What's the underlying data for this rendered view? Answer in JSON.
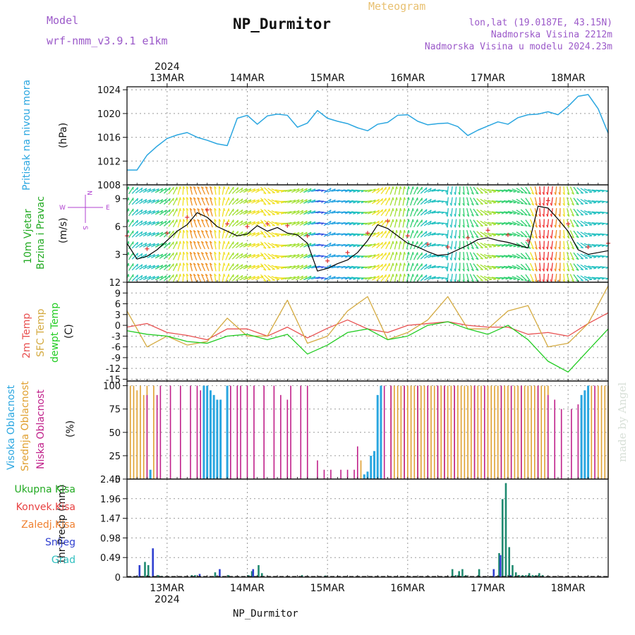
{
  "header": {
    "model_label": "Model",
    "model_name": "wrf-nmm_v3.9.1 e1km",
    "title": "NP_Durmitor",
    "meteogram_label": "Meteogram",
    "lonlat": "lon,lat (19.0187E, 43.15N)",
    "elevation": "Nadmorska Visina 2212m",
    "model_elevation": "Nadmorska Visina u modelu 2024.23m",
    "watermark": "made by Angel",
    "footer": "NP_Durmitor"
  },
  "colors": {
    "pressure": "#2aa6e0",
    "temp2m": "#e85050",
    "sfc": "#d4aa40",
    "dewpt": "#22cc22",
    "high_cloud": "#2aa6e0",
    "mid_cloud": "#e0a030",
    "low_cloud": "#c0208a",
    "rain_total": "#1f8a70",
    "convective": "#e84040",
    "freezing": "#f08030",
    "snow": "#3040d0",
    "hail": "#30c0c0"
  },
  "time_axis": {
    "year": "2024",
    "top_labels": [
      "13MAR",
      "14MAR",
      "15MAR",
      "16MAR",
      "17MAR",
      "18MAR"
    ],
    "bottom_labels": [
      "13MAR",
      "14MAR",
      "15MAR",
      "16MAR",
      "17MAR",
      "18MAR"
    ],
    "start_hour_offset": -12,
    "total_hours": 144
  },
  "chart_data": [
    {
      "type": "line",
      "panel": "pressure",
      "ylabel_lines": [
        "Pritisak na nivou mora",
        "(hPa)"
      ],
      "ylim": [
        1008,
        1024.5
      ],
      "yticks": [
        "1008",
        "1012",
        "1016",
        "1020",
        "1024"
      ],
      "grid": true,
      "series": [
        {
          "name": "Pritisak na nivou mora",
          "color_key": "pressure",
          "x": [
            0,
            3,
            6,
            9,
            12,
            15,
            18,
            21,
            24,
            27,
            30,
            33,
            36,
            39,
            42,
            45,
            48,
            51,
            54,
            57,
            60,
            63,
            66,
            69,
            72,
            75,
            78,
            81,
            84,
            87,
            90,
            93,
            96,
            99,
            102,
            105,
            108,
            111,
            114,
            117,
            120,
            123,
            126,
            129,
            132,
            135,
            138,
            141,
            144
          ],
          "values": [
            1010.5,
            1010.5,
            1013,
            1014.5,
            1015.8,
            1016.4,
            1016.8,
            1016,
            1015.5,
            1014.9,
            1014.6,
            1019.2,
            1019.7,
            1018.2,
            1019.6,
            1019.9,
            1019.7,
            1017.7,
            1018.4,
            1020.5,
            1019.2,
            1018.7,
            1018.3,
            1017.6,
            1017.1,
            1018.2,
            1018.5,
            1019.7,
            1019.8,
            1018.7,
            1018.1,
            1018.3,
            1018.4,
            1017.8,
            1016.3,
            1017.2,
            1017.9,
            1018.6,
            1018.2,
            1019.3,
            1019.8,
            1019.9,
            1020.3,
            1019.8,
            1021.2,
            1022.9,
            1023.2,
            1020.8,
            1016.7
          ]
        }
      ]
    },
    {
      "type": "line",
      "panel": "wind",
      "ylabel_lines": [
        "10m Vjetar",
        "Brzina i Pravac",
        "(m/s)"
      ],
      "compass": {
        "n": "N",
        "s": "S",
        "w": "W",
        "e": "E"
      },
      "ylim": [
        0,
        10.5
      ],
      "yticks": [
        "3",
        "6",
        "9"
      ],
      "series": [
        {
          "name": "Brzina",
          "color": "#000000",
          "x": [
            0,
            3,
            6,
            9,
            12,
            15,
            18,
            21,
            24,
            27,
            30,
            33,
            36,
            39,
            42,
            45,
            48,
            51,
            54,
            57,
            60,
            63,
            66,
            69,
            72,
            75,
            78,
            81,
            84,
            87,
            90,
            93,
            96,
            99,
            102,
            105,
            108,
            111,
            114,
            117,
            120,
            123,
            126,
            129,
            132,
            135,
            138,
            141,
            144
          ],
          "values": [
            4.2,
            2.5,
            2.8,
            3.5,
            4.5,
            5.5,
            6.2,
            7.5,
            7,
            6,
            5.5,
            5,
            5.2,
            6.1,
            5.5,
            5.9,
            5.3,
            5.1,
            4.2,
            1.2,
            1.5,
            2,
            2.4,
            3.2,
            4.5,
            6.2,
            5.8,
            5,
            4.2,
            3.8,
            3.3,
            2.9,
            3,
            3.5,
            4,
            4.6,
            4.8,
            4.5,
            4.3,
            4,
            3.7,
            8.2,
            8,
            6.8,
            5.5,
            3.5,
            3,
            3.2,
            3.4
          ]
        }
      ]
    },
    {
      "type": "line",
      "panel": "temperature",
      "ylabel_lines": [
        "2m Temp",
        "SFC Temp",
        "dewpt Temp",
        "(C)"
      ],
      "ylim": [
        -15.5,
        12
      ],
      "yticks": [
        "-15",
        "-12",
        "-9",
        "-6",
        "-3",
        "0",
        "3",
        "6",
        "9",
        "12"
      ],
      "series": [
        {
          "name": "2m Temp",
          "color_key": "temp2m",
          "x": [
            0,
            6,
            12,
            18,
            24,
            30,
            36,
            42,
            48,
            54,
            60,
            66,
            72,
            78,
            84,
            90,
            96,
            102,
            108,
            114,
            120,
            126,
            132,
            138,
            144
          ],
          "values": [
            -0.5,
            0.5,
            -2,
            -2.8,
            -4,
            -1,
            -1,
            -3,
            -0.5,
            -3.5,
            -0.8,
            1.5,
            -1,
            -2,
            0,
            0.5,
            1,
            0,
            -0.5,
            -0.5,
            -2.5,
            -2,
            -3,
            0.5,
            3.5
          ]
        },
        {
          "name": "SFC Temp",
          "color_key": "sfc",
          "x": [
            0,
            6,
            12,
            18,
            24,
            30,
            36,
            42,
            48,
            54,
            60,
            66,
            72,
            78,
            84,
            90,
            96,
            102,
            108,
            114,
            120,
            126,
            132,
            138,
            144
          ],
          "values": [
            4,
            -6,
            -3,
            -5.5,
            -4.5,
            2,
            -3,
            -3,
            7,
            -5,
            -3,
            4,
            8,
            -4,
            -2,
            1.5,
            8,
            -1,
            -1,
            4,
            5.5,
            -6,
            -5,
            0.5,
            11
          ]
        },
        {
          "name": "dewpt Temp",
          "color_key": "dewpt",
          "x": [
            0,
            6,
            12,
            18,
            24,
            30,
            36,
            42,
            48,
            54,
            60,
            66,
            72,
            78,
            84,
            90,
            96,
            102,
            108,
            114,
            120,
            126,
            132,
            138,
            144
          ],
          "values": [
            -1.5,
            -2.5,
            -3,
            -4.5,
            -5,
            -3,
            -2.5,
            -4,
            -2.5,
            -8,
            -5.5,
            -2,
            -1,
            -4,
            -3,
            0,
            1,
            -1,
            -2.5,
            0,
            -4,
            -10,
            -13,
            -7,
            -1
          ]
        }
      ]
    },
    {
      "type": "bar",
      "panel": "cloud",
      "ylabel_lines": [
        "Visoka Oblacnost",
        "Srednja Oblacnost",
        "Niska Oblacnost",
        "(%)"
      ],
      "ylim": [
        0,
        105
      ],
      "yticks": [
        "0",
        "25",
        "50",
        "75",
        "100"
      ],
      "series": [
        {
          "name": "Visoka Oblacnost",
          "color_key": "high_cloud",
          "x": [
            7,
            23,
            24,
            25,
            26,
            27,
            28,
            30,
            71,
            72,
            73,
            74,
            75,
            76,
            136,
            137,
            138
          ],
          "values": [
            10,
            100,
            100,
            95,
            90,
            85,
            85,
            100,
            5,
            8,
            25,
            30,
            90,
            100,
            90,
            95,
            100
          ]
        },
        {
          "name": "Srednja Oblacnost",
          "color_key": "mid_cloud",
          "x": [
            1,
            2,
            3,
            4,
            5,
            6,
            8,
            70,
            79,
            80,
            81,
            82,
            83,
            84,
            85,
            86,
            87,
            88,
            89,
            90,
            91,
            92,
            93,
            94,
            95,
            96,
            97,
            98,
            99,
            100,
            101,
            102,
            103,
            104,
            105,
            106,
            107,
            108,
            109,
            110,
            111,
            112,
            113,
            114,
            115,
            116,
            117,
            118,
            119,
            120,
            121,
            122,
            123,
            124,
            125,
            126,
            139,
            141,
            142,
            143,
            144
          ],
          "values": [
            100,
            100,
            95,
            100,
            90,
            100,
            100,
            20,
            100,
            100,
            100,
            100,
            100,
            100,
            100,
            100,
            100,
            100,
            100,
            100,
            100,
            100,
            100,
            100,
            100,
            100,
            100,
            100,
            100,
            100,
            100,
            100,
            100,
            100,
            100,
            100,
            100,
            100,
            100,
            100,
            100,
            100,
            100,
            100,
            100,
            100,
            100,
            100,
            100,
            100,
            100,
            100,
            100,
            100,
            100,
            100,
            100,
            100,
            100,
            100,
            100
          ]
        },
        {
          "name": "Niska Oblacnost",
          "color_key": "low_cloud",
          "x": [
            6,
            9,
            10,
            13,
            16,
            19,
            21,
            22,
            31,
            33,
            34,
            36,
            38,
            41,
            44,
            46,
            48,
            49,
            52,
            54,
            57,
            59,
            61,
            64,
            66,
            68,
            69,
            77,
            79,
            83,
            87,
            90,
            93,
            95,
            98,
            104,
            107,
            112,
            115,
            118,
            123,
            126,
            128,
            130,
            133,
            135,
            140
          ],
          "values": [
            90,
            90,
            100,
            100,
            100,
            100,
            100,
            95,
            100,
            100,
            100,
            100,
            100,
            100,
            100,
            90,
            85,
            100,
            100,
            100,
            20,
            10,
            10,
            10,
            10,
            10,
            35,
            100,
            100,
            100,
            100,
            100,
            100,
            100,
            100,
            100,
            100,
            100,
            100,
            100,
            100,
            90,
            85,
            75,
            75,
            80,
            100
          ]
        }
      ]
    },
    {
      "type": "bar",
      "panel": "precip",
      "ylabel_lines": [
        "1hr Precip (mm)"
      ],
      "legend": [
        "Ukupna Kisa",
        "Konvek.Kisa",
        "Zaledj.Kisa",
        "Snijeg",
        "Grad"
      ],
      "ylim": [
        0,
        2.45
      ],
      "yticks": [
        "0",
        "0.49",
        "0.98",
        "1.47",
        "1.96",
        "2.45"
      ],
      "series": [
        {
          "name": "Ukupna Kisa",
          "color_key": "rain_total",
          "x": [
            3,
            5,
            6,
            9,
            10,
            19,
            20,
            26,
            30,
            36,
            37,
            39,
            40,
            52,
            59,
            86,
            97,
            98,
            99,
            100,
            101,
            105,
            111,
            112,
            113,
            114,
            115,
            116,
            117,
            118,
            119,
            120,
            121,
            122,
            123,
            124
          ],
          "values": [
            0.02,
            0.38,
            0.3,
            0.05,
            0.03,
            0.05,
            0.05,
            0.12,
            0.05,
            0.05,
            0.15,
            0.3,
            0.1,
            0.05,
            0.04,
            0.02,
            0.2,
            0.05,
            0.15,
            0.2,
            0.05,
            0.2,
            0.6,
            1.95,
            2.35,
            0.75,
            0.3,
            0.12,
            0.05,
            0.05,
            0.05,
            0.1,
            0.05,
            0.05,
            0.1,
            0.05
          ]
        },
        {
          "name": "Snijeg",
          "color_key": "snow",
          "x": [
            4,
            8,
            22,
            28,
            38,
            110,
            112,
            115
          ],
          "values": [
            0.3,
            0.72,
            0.08,
            0.2,
            0.2,
            0.2,
            0.55,
            0.05
          ]
        }
      ]
    }
  ]
}
